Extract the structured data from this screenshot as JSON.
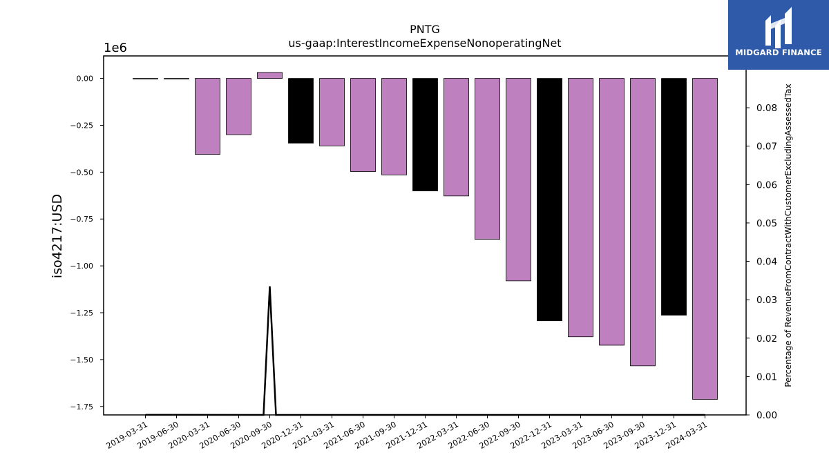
{
  "chart_data": {
    "type": "bar",
    "title": "PNTG",
    "subtitle": "us-gaap:InterestIncomeExpenseNonoperatingNet",
    "ylabel": "iso4217:USD",
    "y_multiplier_label": "1e6",
    "y2label": "Percentage of RevenueFromContractWithCustomerExcludingAssessedTax",
    "categories": [
      "2019-03-31",
      "2019-06-30",
      "2020-03-31",
      "2020-06-30",
      "2020-09-30",
      "2020-12-31",
      "2021-03-31",
      "2021-06-30",
      "2021-09-30",
      "2021-12-31",
      "2022-03-31",
      "2022-06-30",
      "2022-09-30",
      "2022-12-31",
      "2023-03-31",
      "2023-06-30",
      "2023-09-30",
      "2023-12-31",
      "2024-03-31"
    ],
    "values": [
      -1000,
      -2000,
      -405000,
      -300000,
      32000,
      -345000,
      -360000,
      -497000,
      -515000,
      -600000,
      -627000,
      -858000,
      -1080000,
      -1293000,
      -1378000,
      -1423000,
      -1533000,
      -1263000,
      -1712000
    ],
    "bar_colors": [
      "#000000",
      "#000000",
      "#bf80bf",
      "#bf80bf",
      "#bf80bf",
      "#000000",
      "#bf80bf",
      "#bf80bf",
      "#bf80bf",
      "#000000",
      "#bf80bf",
      "#bf80bf",
      "#bf80bf",
      "#000000",
      "#bf80bf",
      "#bf80bf",
      "#bf80bf",
      "#000000",
      "#bf80bf"
    ],
    "yticks": [
      0,
      -0.25,
      -0.5,
      -0.75,
      -1.0,
      -1.25,
      -1.5,
      -1.75
    ],
    "ytick_labels": [
      "0.00",
      "−0.25",
      "−0.50",
      "−0.75",
      "−1.00",
      "−1.25",
      "−1.50",
      "−1.75"
    ],
    "ylim": [
      -1.795,
      0.12
    ],
    "y2ticks": [
      0,
      0.01,
      0.02,
      0.03,
      0.04,
      0.05,
      0.06,
      0.07,
      0.08
    ],
    "y2tick_labels": [
      "0.00",
      "0.01",
      "0.02",
      "0.03",
      "0.04",
      "0.05",
      "0.06",
      "0.07",
      "0.08"
    ],
    "y2lim": [
      0,
      0.0935
    ],
    "secondary_line": {
      "x": [
        0,
        0.6,
        3.8,
        4.0,
        4.2,
        18
      ],
      "y": [
        2e-05,
        2e-05,
        0,
        0.0335,
        0,
        0
      ]
    },
    "grid": false,
    "legend": "none",
    "colors": {
      "purple": "#bf80bf",
      "black": "#000000"
    }
  },
  "logo": {
    "text": "MIDGARD FINANCE",
    "background": "#2f5aaa"
  }
}
